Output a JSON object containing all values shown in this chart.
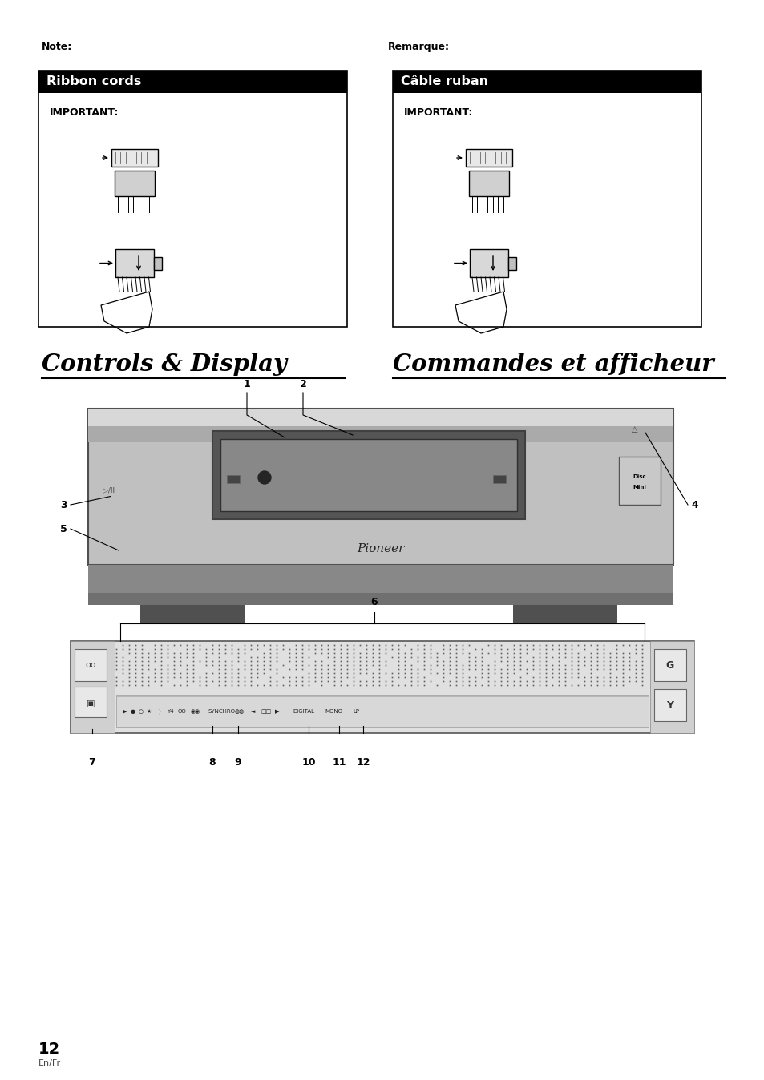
{
  "page_bg": "#ffffff",
  "note_label": "Note:",
  "remarque_label": "Remarque:",
  "box1_title": "Ribbon cords",
  "box2_title": "Câble ruban",
  "important_text": "IMPORTANT:",
  "section_title_en": "Controls & Display",
  "section_title_fr": "Commandes et afficheur",
  "page_number": "12",
  "page_lang": "En/Fr",
  "label1": "1",
  "label2": "2",
  "label3": "3",
  "label4": "4",
  "label5": "5",
  "label6": "6",
  "label7": "7",
  "label8": "8",
  "label9": "9",
  "label10": "10",
  "label11": "11",
  "label12": "12"
}
